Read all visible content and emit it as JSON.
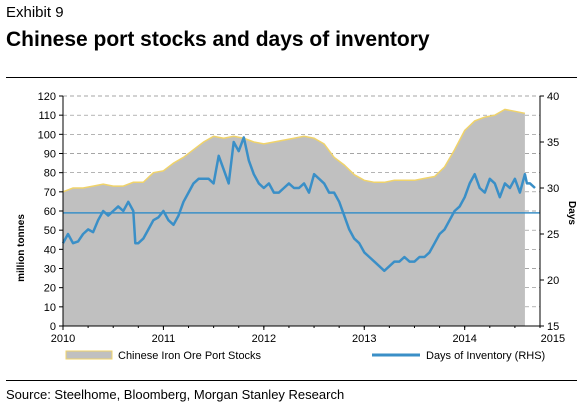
{
  "header": {
    "exhibit": "Exhibit 9",
    "title": "Chinese port stocks and days of inventory"
  },
  "footer": {
    "source": "Source: Steelhome, Bloomberg, Morgan Stanley Research"
  },
  "colors": {
    "area_fill": "#c0c0c0",
    "area_edge": "#f0d36a",
    "line": "#3a8fc7",
    "dashed_grid": "#888888"
  },
  "chart_data": {
    "type": "area+line",
    "title": "Chinese port stocks and days of inventory",
    "x": {
      "ticks": [
        "2010",
        "2011",
        "2012",
        "2013",
        "2014",
        "2015"
      ],
      "range": [
        2010,
        2014.75
      ]
    },
    "y_left": {
      "label": "million tonnes",
      "range": [
        0,
        120
      ],
      "ticks": [
        "0",
        "10",
        "20",
        "30",
        "40",
        "50",
        "60",
        "70",
        "80",
        "90",
        "100",
        "110",
        "120"
      ]
    },
    "y_right": {
      "label": "Days",
      "range": [
        15,
        40
      ],
      "ticks": [
        "15",
        "20",
        "25",
        "30",
        "35",
        "40"
      ]
    },
    "reference_line": {
      "axis": "right",
      "value": 27.3
    },
    "grid": "horizontal dashed",
    "legend_position": "bottom",
    "series": [
      {
        "name": "Chinese Iron Ore Port Stocks",
        "kind": "area",
        "axis": "left",
        "x": [
          2010.0,
          2010.1,
          2010.2,
          2010.3,
          2010.4,
          2010.5,
          2010.6,
          2010.7,
          2010.8,
          2010.9,
          2011.0,
          2011.1,
          2011.2,
          2011.3,
          2011.4,
          2011.5,
          2011.6,
          2011.7,
          2011.8,
          2011.9,
          2012.0,
          2012.1,
          2012.2,
          2012.3,
          2012.4,
          2012.5,
          2012.6,
          2012.7,
          2012.8,
          2012.9,
          2013.0,
          2013.1,
          2013.2,
          2013.3,
          2013.4,
          2013.5,
          2013.6,
          2013.7,
          2013.8,
          2013.9,
          2014.0,
          2014.1,
          2014.2,
          2014.3,
          2014.4,
          2014.5,
          2014.6
        ],
        "values": [
          70,
          72,
          72,
          73,
          74,
          73,
          73,
          75,
          75,
          80,
          81,
          85,
          88,
          92,
          96,
          99,
          98,
          99,
          98,
          96,
          95,
          96,
          97,
          98,
          99,
          98,
          95,
          88,
          84,
          79,
          76,
          75,
          75,
          76,
          76,
          76,
          77,
          78,
          83,
          92,
          102,
          107,
          109,
          110,
          113,
          112,
          111
        ]
      },
      {
        "name": "Days of Inventory (RHS)",
        "kind": "line",
        "axis": "right",
        "x": [
          2010.0,
          2010.05,
          2010.1,
          2010.15,
          2010.2,
          2010.25,
          2010.3,
          2010.35,
          2010.4,
          2010.45,
          2010.5,
          2010.55,
          2010.6,
          2010.65,
          2010.7,
          2010.72,
          2010.75,
          2010.8,
          2010.85,
          2010.9,
          2010.95,
          2011.0,
          2011.05,
          2011.1,
          2011.15,
          2011.2,
          2011.25,
          2011.3,
          2011.35,
          2011.4,
          2011.45,
          2011.5,
          2011.55,
          2011.6,
          2011.65,
          2011.7,
          2011.75,
          2011.8,
          2011.85,
          2011.9,
          2011.95,
          2012.0,
          2012.05,
          2012.1,
          2012.15,
          2012.2,
          2012.25,
          2012.3,
          2012.35,
          2012.4,
          2012.45,
          2012.5,
          2012.55,
          2012.6,
          2012.65,
          2012.7,
          2012.75,
          2012.8,
          2012.85,
          2012.9,
          2012.95,
          2013.0,
          2013.05,
          2013.1,
          2013.15,
          2013.2,
          2013.25,
          2013.3,
          2013.35,
          2013.4,
          2013.45,
          2013.5,
          2013.55,
          2013.6,
          2013.65,
          2013.7,
          2013.75,
          2013.8,
          2013.85,
          2013.9,
          2013.95,
          2014.0,
          2014.05,
          2014.1,
          2014.15,
          2014.2,
          2014.25,
          2014.3,
          2014.35,
          2014.4,
          2014.45,
          2014.5,
          2014.55,
          2014.6,
          2014.62,
          2014.65,
          2014.7
        ],
        "values": [
          24,
          25,
          24,
          24.2,
          25,
          25.5,
          25.2,
          26.5,
          27.5,
          27,
          27.5,
          28,
          27.5,
          28.5,
          27.5,
          24,
          24,
          24.5,
          25.5,
          26.5,
          26.8,
          27.5,
          26.5,
          26,
          27,
          28.5,
          29.5,
          30.5,
          31,
          31,
          31,
          30.5,
          33.5,
          32,
          30.5,
          35,
          34,
          35.5,
          33,
          31.5,
          30.5,
          30,
          30.5,
          29.5,
          29.5,
          30,
          30.5,
          30,
          30,
          30.5,
          29.5,
          31.5,
          31,
          30.5,
          29.5,
          29.5,
          28.5,
          27,
          25.5,
          24.5,
          24,
          23,
          22.5,
          22,
          21.5,
          21,
          21.5,
          22,
          22,
          22.5,
          22,
          22,
          22.5,
          22.5,
          23,
          24,
          25,
          25.5,
          26.5,
          27.5,
          28,
          29,
          30.5,
          31.5,
          30,
          29.5,
          31,
          30.5,
          29,
          30.5,
          30,
          31,
          29.5,
          31.5,
          30.5,
          30.5,
          30
        ]
      }
    ]
  }
}
